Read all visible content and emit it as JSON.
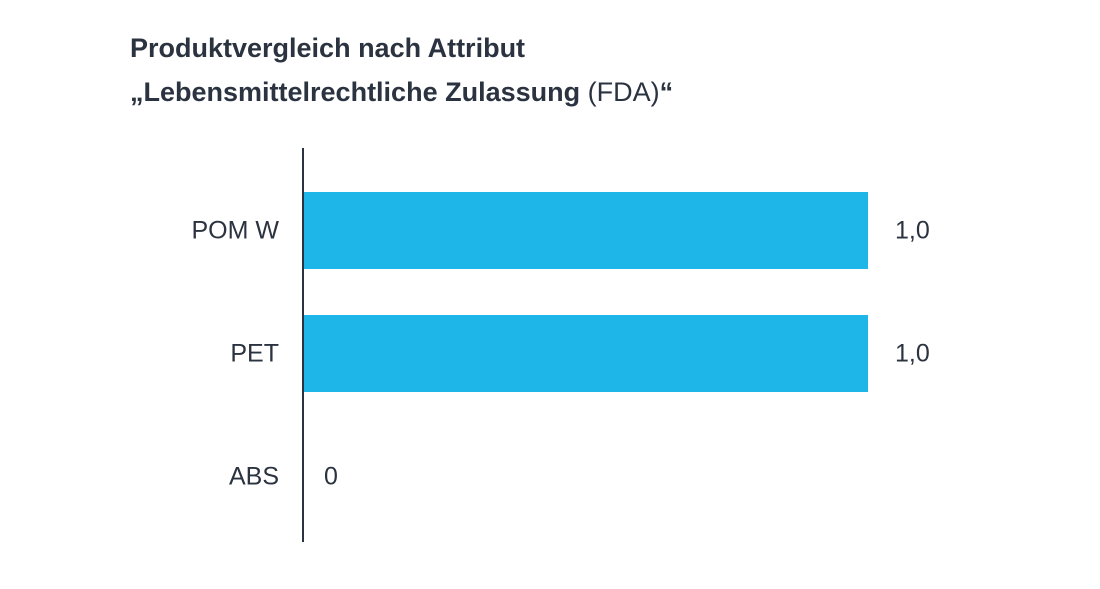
{
  "title": {
    "line1": "Produktvergleich nach Attribut",
    "line2_bold": "„Lebensmittelrechtliche Zulassung",
    "line2_regular": " (FDA)",
    "line2_end": "“"
  },
  "chart_data": {
    "type": "bar",
    "orientation": "horizontal",
    "categories": [
      "POM W",
      "PET",
      "ABS"
    ],
    "values": [
      1.0,
      1.0,
      0
    ],
    "value_labels": [
      "1,0",
      "1,0",
      "0"
    ],
    "xlim": [
      0,
      1.0
    ],
    "grid": false,
    "legend": "none",
    "bar_color": "#1eb5e8",
    "axis_color": "#2b3340"
  }
}
